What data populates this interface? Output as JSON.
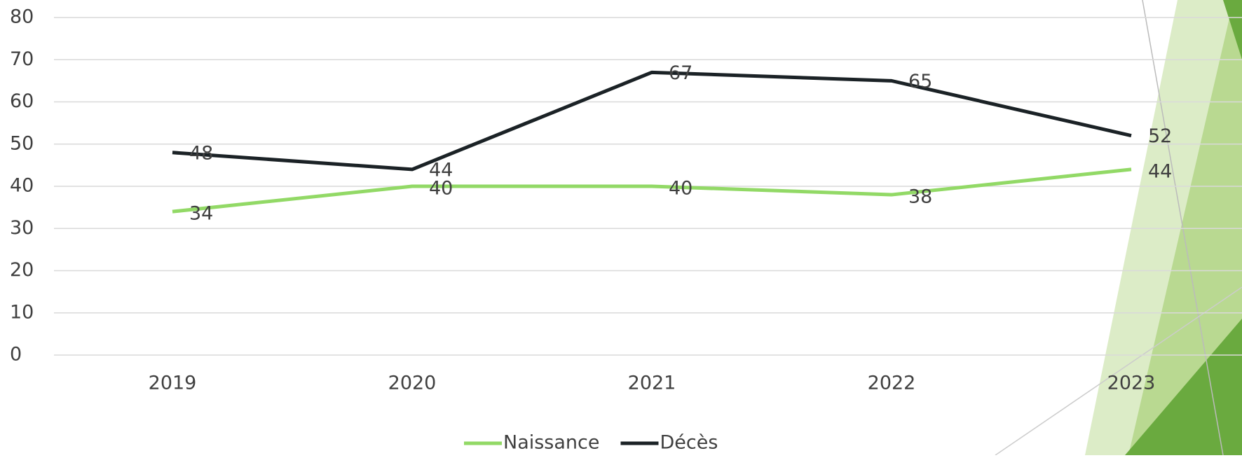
{
  "chart_data": {
    "type": "line",
    "categories": [
      "2019",
      "2020",
      "2021",
      "2022",
      "2023"
    ],
    "series": [
      {
        "name": "Naissance",
        "color": "#92d966",
        "values": [
          34,
          40,
          40,
          38,
          44
        ]
      },
      {
        "name": "Décès",
        "color": "#1b2226",
        "values": [
          48,
          44,
          67,
          65,
          52
        ]
      }
    ],
    "ylim": [
      0,
      80
    ],
    "yticks": [
      0,
      10,
      20,
      30,
      40,
      50,
      60,
      70,
      80
    ],
    "grid": true,
    "legend": "bottom"
  }
}
